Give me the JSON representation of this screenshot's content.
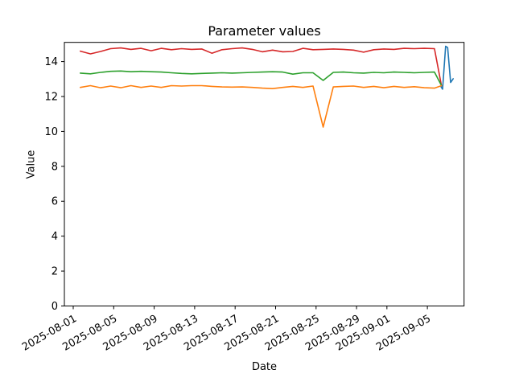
{
  "figure": {
    "title": "Parameter values",
    "xlabel": "Date",
    "ylabel": "Value"
  },
  "chart_data": {
    "type": "line",
    "title": "Parameter values",
    "xlabel": "Date",
    "ylabel": "Value",
    "legend": "none",
    "grid": false,
    "x_unit": "days since 2025-08-01",
    "xlim": [
      -0.875,
      38.625
    ],
    "ylim": [
      0,
      15.1
    ],
    "y_ticks": [
      0,
      2,
      4,
      6,
      8,
      10,
      12,
      14
    ],
    "x_ticks": [
      {
        "offset": 0,
        "label": "2025-08-01"
      },
      {
        "offset": 4,
        "label": "2025-08-05"
      },
      {
        "offset": 8,
        "label": "2025-08-09"
      },
      {
        "offset": 12,
        "label": "2025-08-13"
      },
      {
        "offset": 16,
        "label": "2025-08-17"
      },
      {
        "offset": 20,
        "label": "2025-08-21"
      },
      {
        "offset": 24,
        "label": "2025-08-25"
      },
      {
        "offset": 28,
        "label": "2025-08-29"
      },
      {
        "offset": 31,
        "label": "2025-09-01"
      },
      {
        "offset": 35,
        "label": "2025-09-05"
      }
    ],
    "series": [
      {
        "name": "red-series",
        "color": "#d62728",
        "x": [
          0.7,
          1.7,
          2.7,
          3.7,
          4.7,
          5.7,
          6.7,
          7.7,
          8.7,
          9.7,
          10.7,
          11.7,
          12.7,
          13.7,
          14.7,
          15.7,
          16.7,
          17.7,
          18.7,
          19.7,
          20.7,
          21.7,
          22.7,
          23.7,
          24.7,
          25.7,
          26.7,
          27.7,
          28.7,
          29.7,
          30.7,
          31.7,
          32.7,
          33.7,
          34.7,
          35.7,
          36.4
        ],
        "values": [
          14.6,
          14.44,
          14.58,
          14.74,
          14.78,
          14.7,
          14.76,
          14.62,
          14.76,
          14.68,
          14.74,
          14.7,
          14.72,
          14.48,
          14.68,
          14.74,
          14.78,
          14.7,
          14.56,
          14.66,
          14.56,
          14.58,
          14.76,
          14.68,
          14.7,
          14.72,
          14.7,
          14.66,
          14.54,
          14.68,
          14.72,
          14.7,
          14.76,
          14.74,
          14.76,
          14.74,
          12.6
        ]
      },
      {
        "name": "green-series",
        "color": "#2ca02c",
        "x": [
          0.7,
          1.7,
          2.7,
          3.7,
          4.7,
          5.7,
          6.7,
          7.7,
          8.7,
          9.7,
          10.7,
          11.7,
          12.7,
          13.7,
          14.7,
          15.7,
          16.7,
          17.7,
          18.7,
          19.7,
          20.7,
          21.7,
          22.7,
          23.7,
          24.7,
          25.7,
          26.7,
          27.7,
          28.7,
          29.7,
          30.7,
          31.7,
          32.7,
          33.7,
          34.7,
          35.7,
          36.4
        ],
        "values": [
          13.34,
          13.3,
          13.38,
          13.44,
          13.46,
          13.42,
          13.44,
          13.42,
          13.4,
          13.36,
          13.32,
          13.3,
          13.32,
          13.34,
          13.36,
          13.34,
          13.36,
          13.38,
          13.4,
          13.42,
          13.4,
          13.28,
          13.36,
          13.36,
          12.92,
          13.38,
          13.4,
          13.36,
          13.34,
          13.38,
          13.36,
          13.4,
          13.38,
          13.36,
          13.38,
          13.4,
          12.62
        ]
      },
      {
        "name": "orange-series",
        "color": "#ff7f0e",
        "x": [
          0.7,
          1.7,
          2.7,
          3.7,
          4.7,
          5.7,
          6.7,
          7.7,
          8.7,
          9.7,
          10.7,
          11.7,
          12.7,
          13.7,
          14.7,
          15.7,
          16.7,
          17.7,
          18.7,
          19.7,
          20.7,
          21.7,
          22.7,
          23.7,
          24.7,
          25.7,
          26.7,
          27.7,
          28.7,
          29.7,
          30.7,
          31.7,
          32.7,
          33.7,
          34.7,
          35.7,
          36.4
        ],
        "values": [
          12.52,
          12.62,
          12.5,
          12.6,
          12.5,
          12.62,
          12.52,
          12.6,
          12.52,
          12.62,
          12.6,
          12.62,
          12.62,
          12.58,
          12.55,
          12.54,
          12.55,
          12.52,
          12.48,
          12.45,
          12.52,
          12.58,
          12.52,
          12.6,
          10.25,
          12.55,
          12.58,
          12.6,
          12.52,
          12.58,
          12.5,
          12.58,
          12.52,
          12.56,
          12.5,
          12.48,
          12.62
        ]
      },
      {
        "name": "blue-series",
        "color": "#1f77b4",
        "x": [
          36.35,
          36.5,
          36.8,
          37.0,
          37.3,
          37.55
        ],
        "values": [
          12.55,
          12.42,
          14.88,
          14.8,
          12.8,
          13.02
        ]
      }
    ]
  }
}
